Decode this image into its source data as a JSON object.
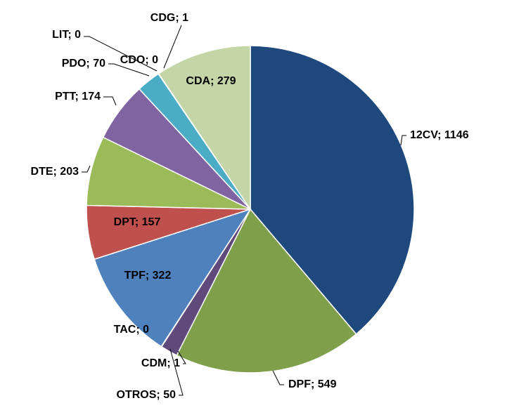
{
  "chart_data": {
    "type": "pie",
    "labels": [
      "12CV; 1146",
      "DPF; 549",
      "OTROS; 50",
      "CDM; 1",
      "TAC; 0",
      "TPF; 322",
      "DPT; 157",
      "DTE; 203",
      "PTT; 174",
      "PDO; 70",
      "LIT; 0",
      "CDO; 0",
      "CDG; 1",
      "CDA; 279"
    ],
    "values": [
      1146,
      549,
      50,
      1,
      0,
      322,
      157,
      203,
      174,
      70,
      0,
      0,
      1,
      279
    ],
    "colors": [
      "#1f497d",
      "#7f9f4a",
      "#604a7b",
      "#8fb0d8",
      "#b0a0c8",
      "#4f81bd",
      "#c0504d",
      "#9bbb59",
      "#8064a2",
      "#4bacc6",
      "#f79646",
      "#2c4d75",
      "#a0c0e0",
      "#c4d6a8"
    ]
  }
}
